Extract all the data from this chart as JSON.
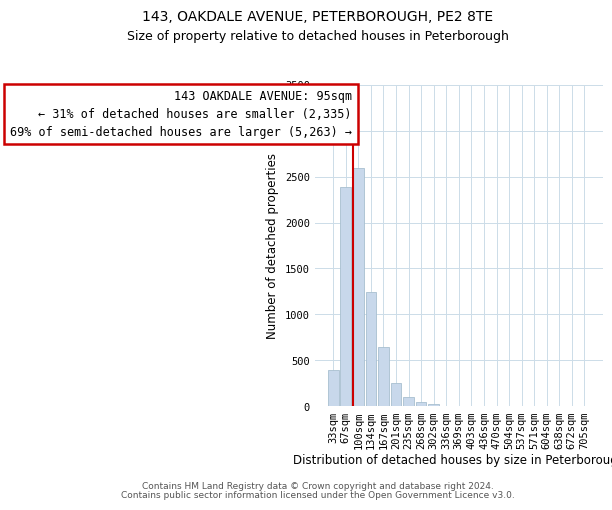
{
  "title": "143, OAKDALE AVENUE, PETERBOROUGH, PE2 8TE",
  "subtitle": "Size of property relative to detached houses in Peterborough",
  "xlabel": "Distribution of detached houses by size in Peterborough",
  "ylabel": "Number of detached properties",
  "bar_color": "#c8d8eb",
  "bar_edge_color": "#a8bfd0",
  "categories": [
    "33sqm",
    "67sqm",
    "100sqm",
    "134sqm",
    "167sqm",
    "201sqm",
    "235sqm",
    "268sqm",
    "302sqm",
    "336sqm",
    "369sqm",
    "403sqm",
    "436sqm",
    "470sqm",
    "504sqm",
    "537sqm",
    "571sqm",
    "604sqm",
    "638sqm",
    "672sqm",
    "705sqm"
  ],
  "values": [
    390,
    2390,
    2600,
    1240,
    640,
    255,
    100,
    45,
    18,
    5,
    2,
    0,
    0,
    0,
    0,
    0,
    0,
    0,
    0,
    0,
    0
  ],
  "ylim": [
    0,
    3500
  ],
  "yticks": [
    0,
    500,
    1000,
    1500,
    2000,
    2500,
    3000,
    3500
  ],
  "property_line_color": "#cc0000",
  "annotation_line1": "143 OAKDALE AVENUE: 95sqm",
  "annotation_line2": "← 31% of detached houses are smaller (2,335)",
  "annotation_line3": "69% of semi-detached houses are larger (5,263) →",
  "annotation_box_color": "#ffffff",
  "annotation_box_edge_color": "#cc0000",
  "footer_line1": "Contains HM Land Registry data © Crown copyright and database right 2024.",
  "footer_line2": "Contains public sector information licensed under the Open Government Licence v3.0.",
  "background_color": "#ffffff",
  "grid_color": "#ccdce8",
  "title_fontsize": 10,
  "subtitle_fontsize": 9,
  "axis_label_fontsize": 8.5,
  "tick_fontsize": 7.5,
  "annotation_fontsize": 8.5,
  "footer_fontsize": 6.5
}
